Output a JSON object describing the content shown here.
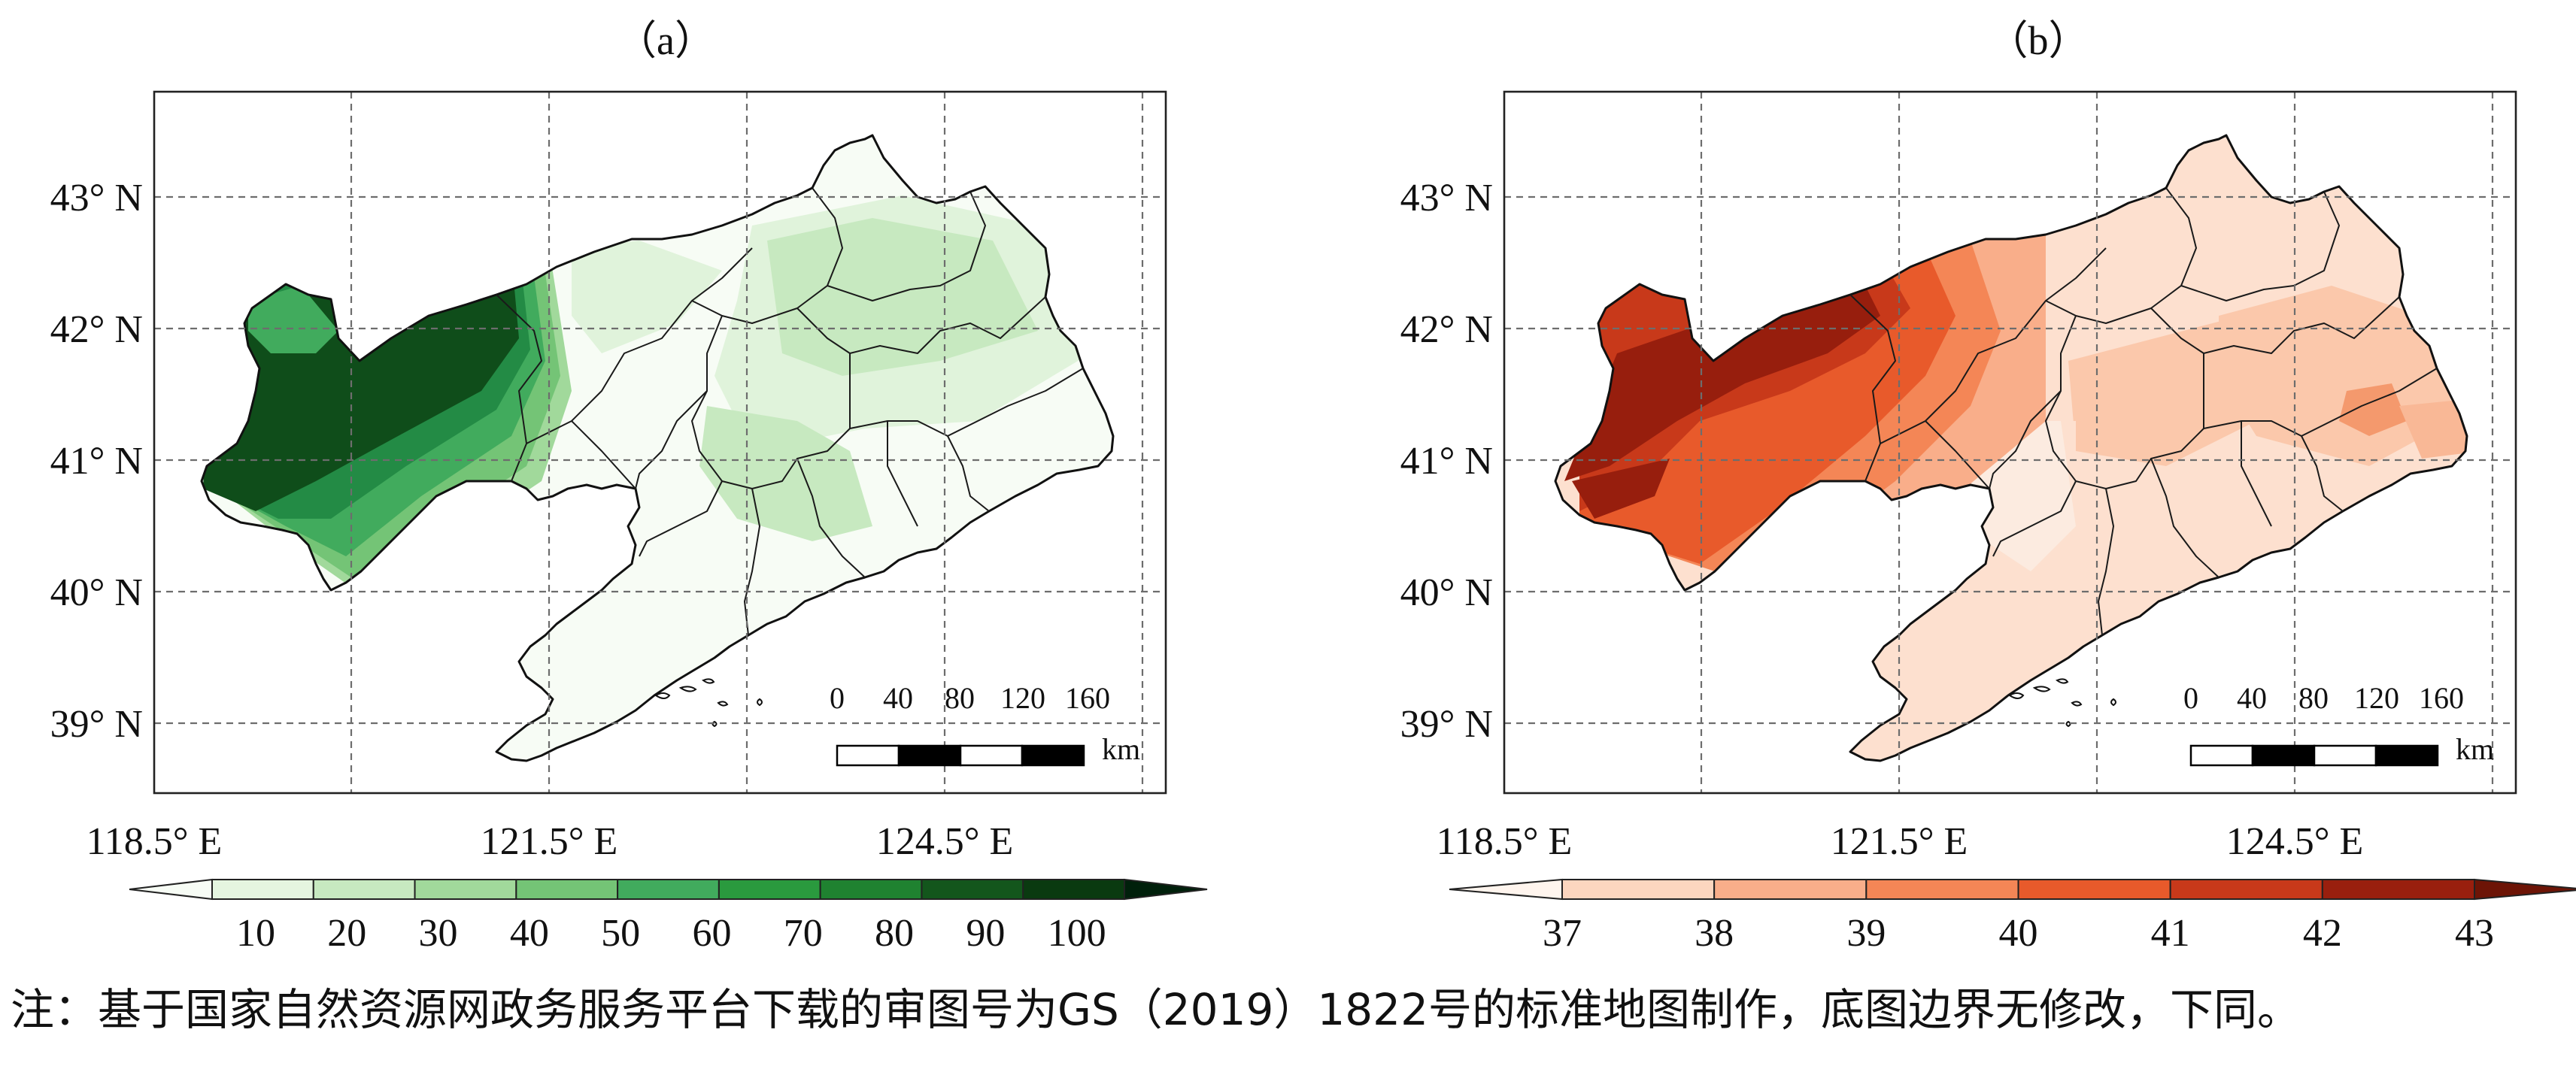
{
  "panels": [
    {
      "label": "（a）",
      "lat_labels": [
        "43° N",
        "42° N",
        "41° N",
        "40° N",
        "39° N"
      ],
      "lon_labels": [
        "118.5° E",
        "121.5° E",
        "124.5° E"
      ],
      "colorbar": {
        "ticks": [
          "10",
          "20",
          "30",
          "40",
          "50",
          "60",
          "70",
          "80",
          "90",
          "100"
        ],
        "colors": [
          "#f7fcf5",
          "#e5f5e0",
          "#c7e9c0",
          "#a1d99b",
          "#74c476",
          "#41ab5d",
          "#2a9a3e",
          "#1f8230",
          "#13561c",
          "#0a3a10",
          "#00200b"
        ]
      },
      "scalebar": {
        "ticks": [
          "0",
          "40",
          "80",
          "120",
          "160"
        ],
        "unit": "km"
      }
    },
    {
      "label": "（b）",
      "lat_labels": [
        "43° N",
        "42° N",
        "41° N",
        "40° N",
        "39° N"
      ],
      "lon_labels": [
        "118.5° E",
        "121.5° E",
        "124.5° E"
      ],
      "colorbar": {
        "ticks": [
          "37",
          "38",
          "39",
          "40",
          "41",
          "42",
          "43"
        ],
        "colors": [
          "#fff5ee",
          "#fcd6bf",
          "#f9ae8a",
          "#f48656",
          "#e85a2b",
          "#c8391a",
          "#991f0e",
          "#6d1406"
        ]
      },
      "scalebar": {
        "ticks": [
          "0",
          "40",
          "80",
          "120",
          "160"
        ],
        "unit": "km"
      }
    }
  ],
  "note": "注：基于国家自然资源网政务服务平台下载的审图号为GS（2019）1822号的标准地图制作，底图边界无修改，下同。"
}
